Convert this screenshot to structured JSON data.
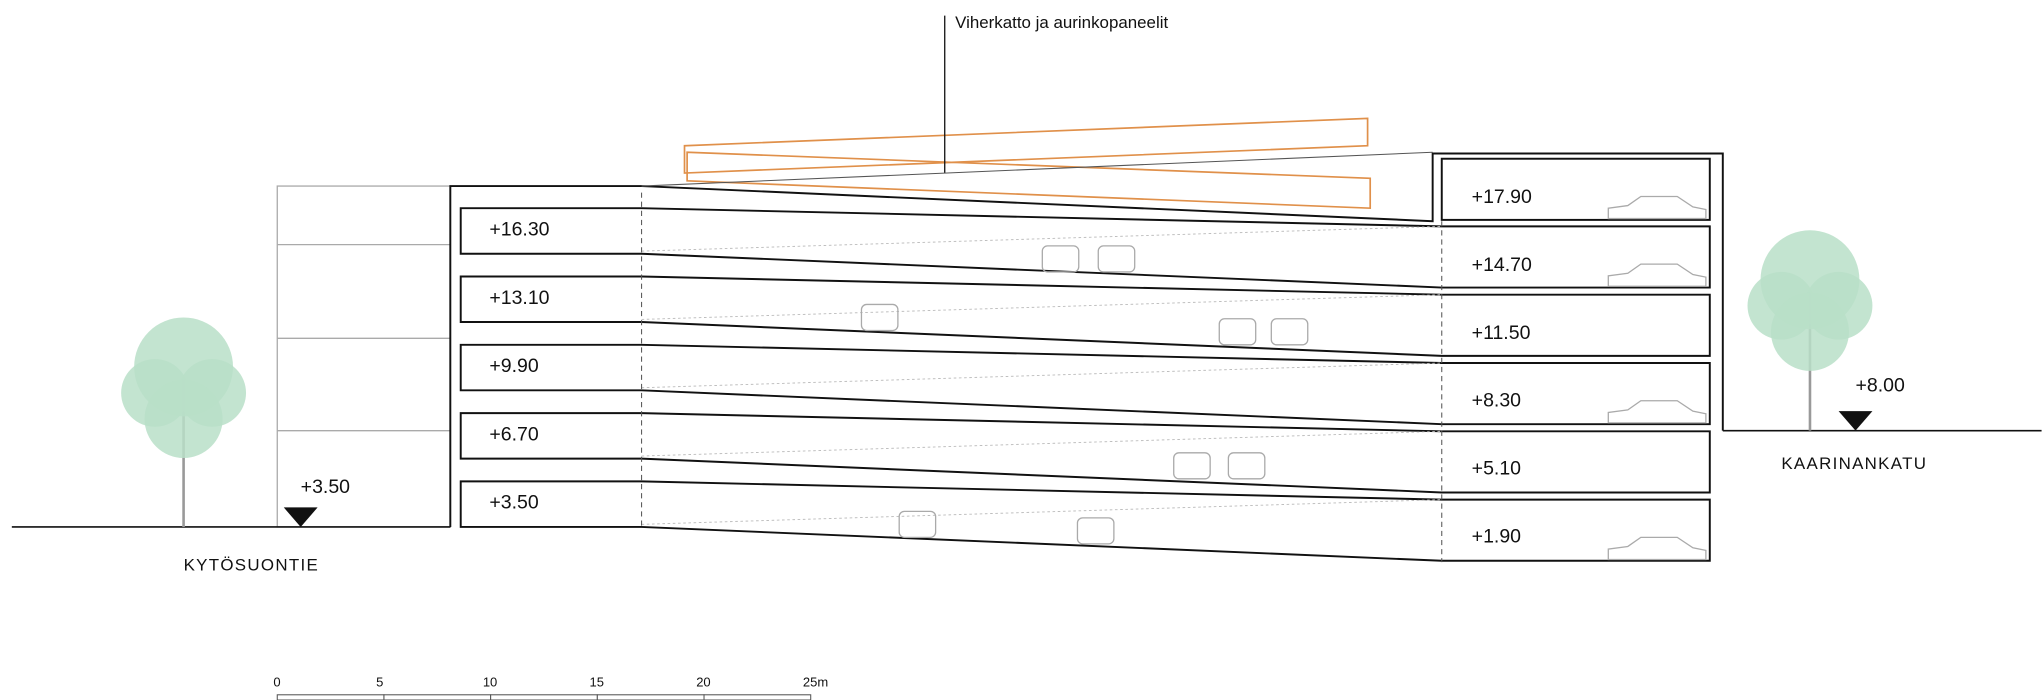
{
  "annotation": "Viherkatto ja aurinkopaneelit",
  "levels_left": [
    "+16.30",
    "+13.10",
    "+9.90",
    "+6.70",
    "+3.50"
  ],
  "levels_right": [
    "+17.90",
    "+14.70",
    "+11.50",
    "+8.30",
    "+5.10",
    "+1.90"
  ],
  "streets": [
    {
      "name": "KYTÖSUONTIE",
      "level": "+3.50"
    },
    {
      "name": "KAARINANKATU",
      "level": "+8.00"
    }
  ],
  "scale_labels": [
    "0",
    "5",
    "10",
    "15",
    "20",
    "25m"
  ]
}
